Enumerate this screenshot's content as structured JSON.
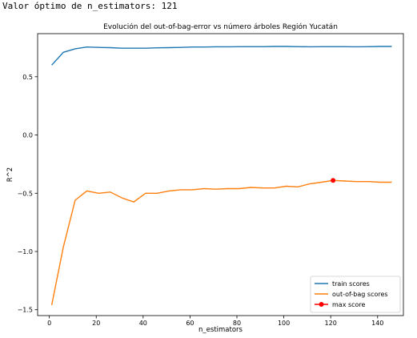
{
  "console": {
    "output_line": "Valor óptimo de n_estimators: 121"
  },
  "chart_data": {
    "type": "line",
    "title": "Evolución del out-of-bag-error vs número árboles Región Yucatán",
    "xlabel": "n_estimators",
    "ylabel": "R^2",
    "xlim": [
      -5,
      151
    ],
    "ylim": [
      -1.55,
      0.87
    ],
    "xticks": [
      0,
      20,
      40,
      60,
      80,
      100,
      120,
      140
    ],
    "yticks": [
      -1.5,
      -1.0,
      -0.5,
      0.0,
      0.5
    ],
    "ytick_labels": [
      "−1.5",
      "−1.0",
      "−0.5",
      "0.0",
      "0.5"
    ],
    "legend_position": "lower-right",
    "grid": false,
    "colors": {
      "train": "#1f77b4",
      "oob": "#ff7f0e",
      "max": "#ff0000"
    },
    "series": [
      {
        "name": "train scores",
        "x": [
          1,
          6,
          11,
          16,
          21,
          26,
          31,
          36,
          41,
          46,
          51,
          56,
          61,
          66,
          71,
          76,
          81,
          86,
          91,
          96,
          101,
          106,
          111,
          116,
          121,
          126,
          131,
          136,
          141,
          146
        ],
        "y": [
          0.6,
          0.71,
          0.74,
          0.755,
          0.752,
          0.75,
          0.745,
          0.745,
          0.745,
          0.748,
          0.75,
          0.752,
          0.755,
          0.755,
          0.757,
          0.757,
          0.758,
          0.758,
          0.758,
          0.76,
          0.76,
          0.758,
          0.757,
          0.758,
          0.758,
          0.758,
          0.757,
          0.758,
          0.76,
          0.76
        ]
      },
      {
        "name": "out-of-bag scores",
        "x": [
          1,
          6,
          11,
          16,
          21,
          26,
          31,
          36,
          41,
          46,
          51,
          56,
          61,
          66,
          71,
          76,
          81,
          86,
          91,
          96,
          101,
          106,
          111,
          116,
          121,
          126,
          131,
          136,
          141,
          146
        ],
        "y": [
          -1.46,
          -0.96,
          -0.56,
          -0.48,
          -0.5,
          -0.49,
          -0.54,
          -0.575,
          -0.5,
          -0.5,
          -0.48,
          -0.47,
          -0.47,
          -0.46,
          -0.465,
          -0.46,
          -0.46,
          -0.45,
          -0.455,
          -0.455,
          -0.44,
          -0.445,
          -0.42,
          -0.405,
          -0.39,
          -0.395,
          -0.4,
          -0.4,
          -0.405,
          -0.405
        ]
      }
    ],
    "max_point": {
      "name": "max score",
      "x": 121,
      "y": -0.39
    }
  }
}
